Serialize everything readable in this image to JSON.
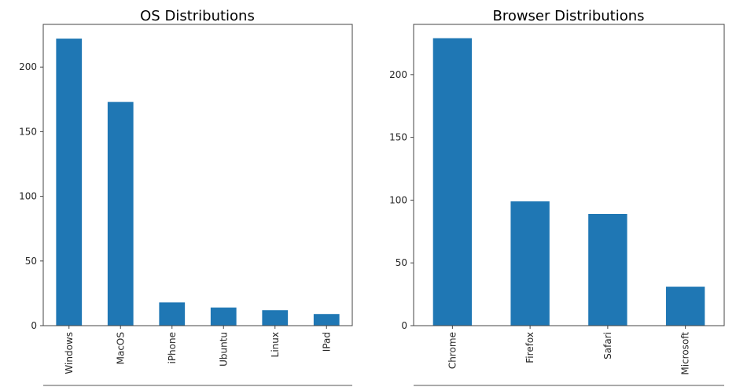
{
  "chart_data": [
    {
      "type": "bar",
      "title": "OS Distributions",
      "categories": [
        "Windows",
        "MacOS",
        "iPhone",
        "Ubuntu",
        "Linux",
        "IPad"
      ],
      "values": [
        222,
        173,
        18,
        14,
        12,
        9
      ],
      "xlabel": "",
      "ylabel": "",
      "ylim": [
        0,
        233
      ],
      "yticks": [
        0,
        50,
        100,
        150,
        200
      ],
      "grid": false,
      "bar_color": "#1f77b4"
    },
    {
      "type": "bar",
      "title": "Browser Distributions",
      "categories": [
        "Chrome",
        "Firefox",
        "Safari",
        "Microsoft"
      ],
      "values": [
        229,
        99,
        89,
        31
      ],
      "xlabel": "",
      "ylabel": "",
      "ylim": [
        0,
        240
      ],
      "yticks": [
        0,
        50,
        100,
        150,
        200
      ],
      "grid": false,
      "bar_color": "#1f77b4"
    }
  ]
}
